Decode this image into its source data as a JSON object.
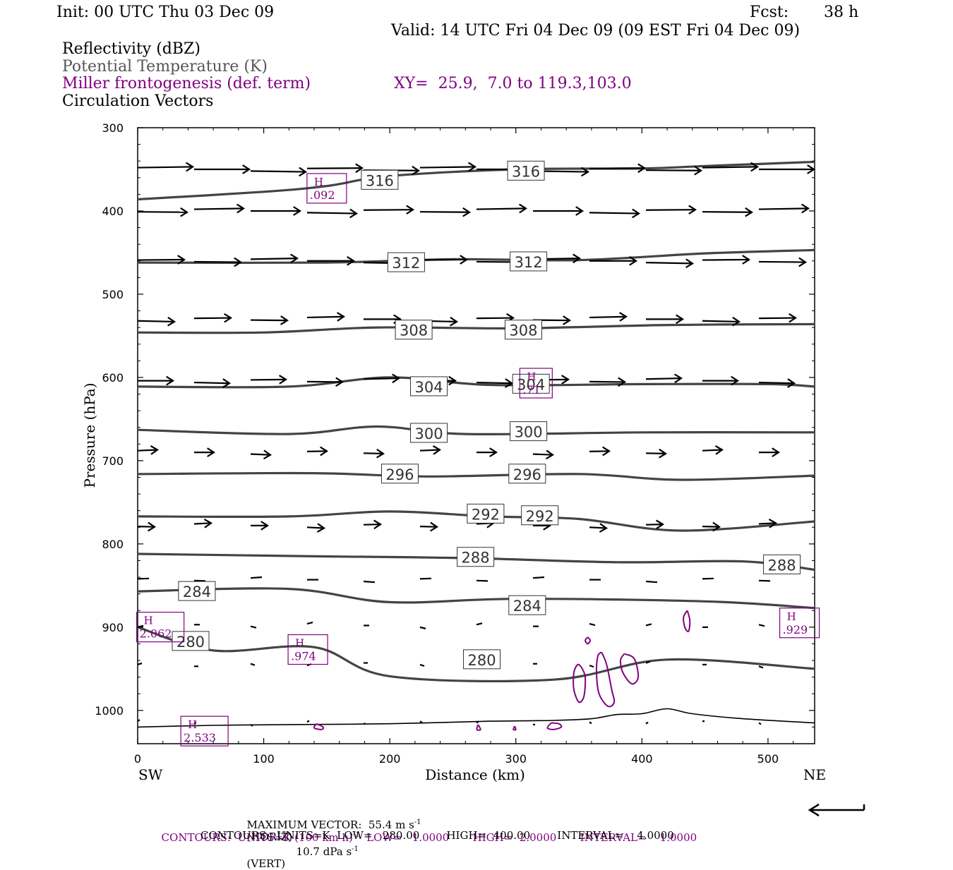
{
  "header": {
    "init": "Init: 00 UTC Thu 03 Dec 09",
    "fcst_label": "Fcst:",
    "fcst_value": "38 h",
    "valid": "Valid: 14 UTC Fri 04 Dec 09 (09 EST Fri 04 Dec 09)"
  },
  "fields": {
    "reflectivity": "Reflectivity (dBZ)",
    "theta": "Potential Temperature (K)",
    "frontogenesis": "Miller frontogenesis (def. term)",
    "xy": "XY=  25.9,  7.0 to 119.3,103.0",
    "circulation": "Circulation Vectors"
  },
  "colors": {
    "theta": "#444444",
    "frontogenesis": "#800080",
    "vectors": "#000000"
  },
  "chart_data": {
    "type": "cross-section",
    "xlabel": "Distance (km)",
    "ylabel": "Pressure (hPa)",
    "xlim": [
      0,
      537
    ],
    "ylim": [
      1040,
      300
    ],
    "x_ticks": [
      0,
      100,
      200,
      300,
      400,
      500
    ],
    "y_ticks": [
      300,
      400,
      500,
      600,
      700,
      800,
      900,
      1000
    ],
    "x_end_labels": {
      "left": "SW",
      "right": "NE"
    },
    "theta_contours": [
      {
        "value": "316",
        "label_positions": [
          [
            192,
            363
          ],
          [
            308,
            352
          ]
        ],
        "points": [
          [
            0,
            386
          ],
          [
            100,
            377
          ],
          [
            150,
            370
          ],
          [
            200,
            358
          ],
          [
            300,
            350
          ],
          [
            400,
            349
          ],
          [
            450,
            346
          ],
          [
            537,
            341
          ]
        ]
      },
      {
        "value": "312",
        "label_positions": [
          [
            213,
            462
          ],
          [
            310,
            461
          ]
        ],
        "points": [
          [
            0,
            462
          ],
          [
            150,
            462
          ],
          [
            250,
            458
          ],
          [
            350,
            459
          ],
          [
            450,
            451
          ],
          [
            537,
            447
          ]
        ]
      },
      {
        "value": "308",
        "label_positions": [
          [
            219,
            543
          ],
          [
            306,
            543
          ]
        ],
        "points": [
          [
            0,
            546
          ],
          [
            100,
            546
          ],
          [
            190,
            540
          ],
          [
            300,
            541
          ],
          [
            420,
            537
          ],
          [
            537,
            536
          ]
        ]
      },
      {
        "value": "304",
        "label_positions": [
          [
            231,
            611
          ],
          [
            312,
            608
          ]
        ],
        "points": [
          [
            0,
            611
          ],
          [
            120,
            611
          ],
          [
            200,
            600
          ],
          [
            280,
            609
          ],
          [
            400,
            608
          ],
          [
            500,
            608
          ],
          [
            537,
            611
          ]
        ]
      },
      {
        "value": "300",
        "label_positions": [
          [
            231,
            667
          ],
          [
            310,
            665
          ]
        ],
        "points": [
          [
            0,
            663
          ],
          [
            120,
            668
          ],
          [
            190,
            659
          ],
          [
            260,
            668
          ],
          [
            400,
            666
          ],
          [
            537,
            666
          ]
        ]
      },
      {
        "value": "296",
        "label_positions": [
          [
            208,
            716
          ],
          [
            309,
            716
          ]
        ],
        "points": [
          [
            0,
            716
          ],
          [
            140,
            715
          ],
          [
            230,
            719
          ],
          [
            350,
            716
          ],
          [
            430,
            723
          ],
          [
            537,
            718
          ]
        ]
      },
      {
        "value": "292",
        "label_positions": [
          [
            276,
            764
          ],
          [
            319,
            766
          ]
        ],
        "points": [
          [
            0,
            767
          ],
          [
            120,
            767
          ],
          [
            200,
            761
          ],
          [
            280,
            767
          ],
          [
            350,
            770
          ],
          [
            430,
            784
          ],
          [
            537,
            773
          ]
        ]
      },
      {
        "value": "288",
        "label_positions": [
          [
            268,
            816
          ],
          [
            511,
            825
          ]
        ],
        "points": [
          [
            0,
            812
          ],
          [
            150,
            815
          ],
          [
            260,
            817
          ],
          [
            380,
            822
          ],
          [
            480,
            821
          ],
          [
            537,
            831
          ]
        ]
      },
      {
        "value": "284",
        "label_positions": [
          [
            47,
            857
          ],
          [
            309,
            874
          ]
        ],
        "points": [
          [
            0,
            857
          ],
          [
            120,
            854
          ],
          [
            200,
            870
          ],
          [
            300,
            866
          ],
          [
            450,
            869
          ],
          [
            537,
            877
          ]
        ]
      },
      {
        "value": "280",
        "label_positions": [
          [
            42,
            917
          ],
          [
            273,
            939
          ]
        ],
        "points": [
          [
            0,
            900
          ],
          [
            60,
            928
          ],
          [
            140,
            924
          ],
          [
            200,
            959
          ],
          [
            330,
            963
          ],
          [
            420,
            939
          ],
          [
            537,
            950
          ]
        ]
      }
    ],
    "frontogenesis_maxima": [
      {
        "label": "H",
        "value": ".092",
        "x": 150,
        "p": 372
      },
      {
        "value": ".71",
        "label": "H",
        "x": 316,
        "p": 606
      },
      {
        "label": "H",
        "value": "2.062",
        "x": 18,
        "p": 899
      },
      {
        "label": "H",
        "value": ".974",
        "x": 135,
        "p": 926
      },
      {
        "label": "H",
        "value": ".929",
        "x": 525,
        "p": 894
      },
      {
        "label": "H",
        "value": "2.533",
        "x": 53,
        "p": 1024
      }
    ],
    "vector_levels_hpa": [
      350,
      400,
      460,
      530,
      604,
      690,
      778,
      843,
      898,
      945,
      1015
    ]
  },
  "footer": {
    "max_vector": "MAXIMUM VECTOR:  55.4 m s",
    "horiz": "(HORIZ)",
    "vert": "10.7 dPa s",
    "vert2": "(VERT)",
    "exp1": "-1",
    "contours_fronto_a": "CONTOURS:  UNITS=K (100 km h)",
    "contours_fronto_b": "  LOW=   1.0000       HIGH=  2.0000       INTERVAL=    1.0000",
    "contours_theta": "CONTOURS:  UNITS=K  LOW=   280.00        HIGH=  400.00        INTERVAL=    4.0000"
  }
}
